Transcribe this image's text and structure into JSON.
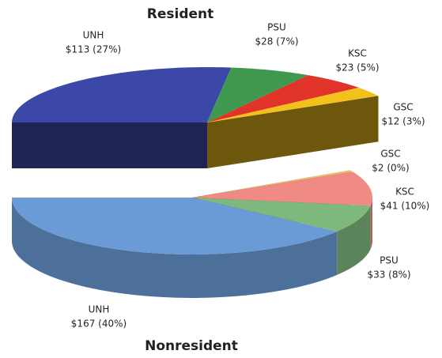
{
  "chart_data": [
    {
      "type": "pie",
      "title": "Resident",
      "categories": [
        "UNH",
        "PSU",
        "KSC",
        "GSC"
      ],
      "values": [
        113,
        28,
        23,
        12
      ],
      "value_labels": [
        "$113 (27%)",
        "$28 (7%)",
        "$23 (5%)",
        "$12 (3%)"
      ],
      "colors": [
        "#3c48a8",
        "#3f9a4f",
        "#e0332a",
        "#f2c11c"
      ]
    },
    {
      "type": "pie",
      "title": "Nonresident",
      "categories": [
        "GSC",
        "KSC",
        "PSU",
        "UNH"
      ],
      "values": [
        2,
        41,
        33,
        167
      ],
      "value_labels": [
        "$2 (0%)",
        "$41 (10%)",
        "$33 (8%)",
        "$167 (40%)"
      ],
      "colors": [
        "#f0c070",
        "#ef8a85",
        "#7fb87d",
        "#6b9bd6"
      ]
    }
  ]
}
